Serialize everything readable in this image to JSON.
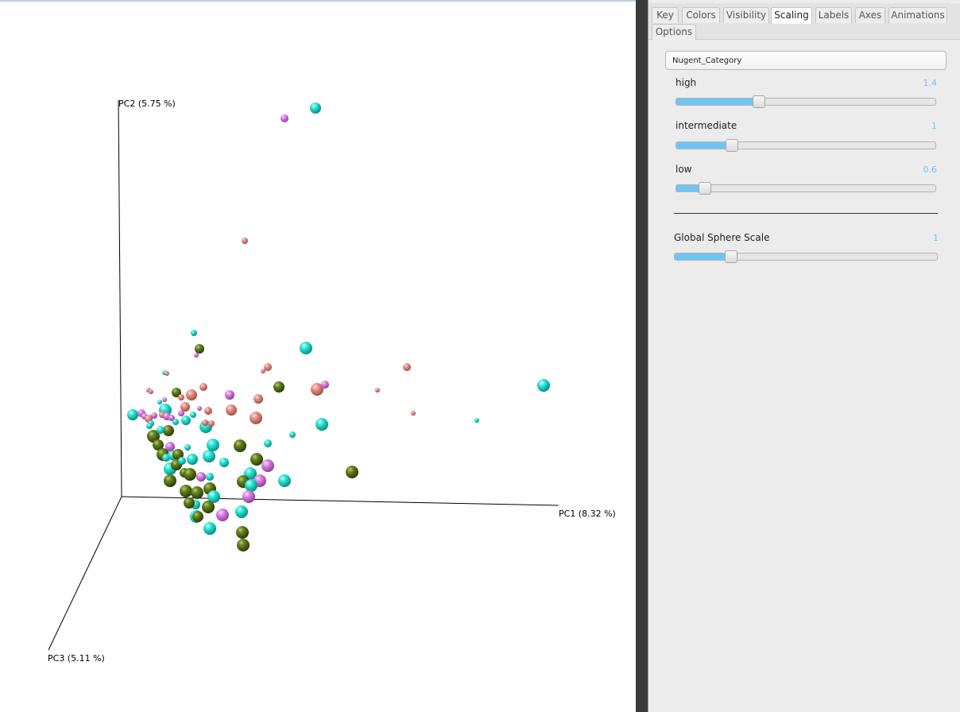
{
  "plot": {
    "axes": {
      "pc1": "PC1 (8.32 %)",
      "pc2": "PC2 (5.75 %)",
      "pc3": "PC3 (5.11 %)"
    },
    "colors": {
      "cyan": "#1ee0d0",
      "olive": "#5f7a1e",
      "salmon": "#e08a80",
      "violet": "#d77be0"
    }
  },
  "panel": {
    "tabs": [
      "Key",
      "Colors",
      "Visibility",
      "Scaling",
      "Labels",
      "Axes",
      "Animations",
      "Options"
    ],
    "active_tab": "Scaling",
    "category": "Nugent_Category",
    "sliders": [
      {
        "label": "high",
        "value": "1.4",
        "fraction": 0.32
      },
      {
        "label": "intermediate",
        "value": "1",
        "fraction": 0.215
      },
      {
        "label": "low",
        "value": "0.6",
        "fraction": 0.11
      }
    ],
    "global": {
      "label": "Global Sphere Scale",
      "value": "1",
      "fraction": 0.215
    }
  }
}
